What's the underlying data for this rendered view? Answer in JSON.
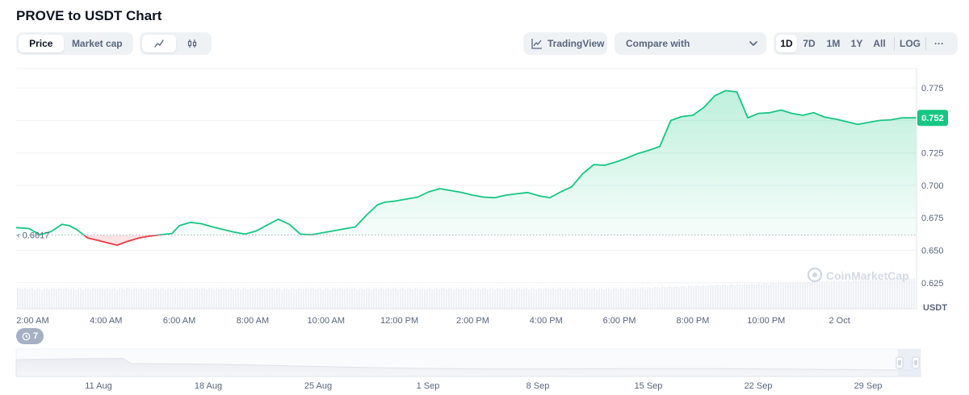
{
  "header": {
    "title": "PROVE to USDT Chart"
  },
  "toolbar": {
    "metric_tabs": [
      {
        "label": "Price",
        "active": true
      },
      {
        "label": "Market cap",
        "active": false
      }
    ],
    "chart_type_icons": [
      "line-chart-icon",
      "candlestick-icon"
    ],
    "tradingview_label": "TradingView",
    "compare_label": "Compare with",
    "ranges": [
      {
        "label": "1D",
        "active": true
      },
      {
        "label": "7D",
        "active": false
      },
      {
        "label": "1M",
        "active": false
      },
      {
        "label": "1Y",
        "active": false
      },
      {
        "label": "All",
        "active": false
      }
    ],
    "log_label": "LOG",
    "more_label": "···"
  },
  "watermark": "CoinMarketCap",
  "history_count": "7",
  "colors": {
    "up": "#16c784",
    "down": "#ea3943",
    "up_fill": "#16c784",
    "down_fill": "#ea3943"
  },
  "chart_data": {
    "type": "line",
    "currency_label": "USDT",
    "baseline": 0.6617,
    "baseline_label": "0.6617",
    "current_label": "0.752",
    "ylim": [
      0.605,
      0.79
    ],
    "yticks": [
      0.625,
      0.65,
      0.675,
      0.7,
      0.725,
      0.75,
      0.775
    ],
    "ytick_labels": [
      "0.625",
      "0.650",
      "0.675",
      "0.700",
      "0.725",
      "0.750",
      "0.775"
    ],
    "xlim": [
      1.55,
      26.1
    ],
    "xticks": [
      2,
      4,
      6,
      8,
      10,
      12,
      14,
      16,
      18,
      20,
      22,
      24
    ],
    "xtick_labels": [
      "2:00 AM",
      "4:00 AM",
      "6:00 AM",
      "8:00 AM",
      "10:00 AM",
      "12:00 PM",
      "2:00 PM",
      "4:00 PM",
      "6:00 PM",
      "8:00 PM",
      "10:00 PM",
      "2 Oct"
    ],
    "x": [
      1.55,
      1.9,
      2.2,
      2.5,
      2.8,
      3.0,
      3.2,
      3.5,
      3.8,
      4.0,
      4.3,
      4.6,
      4.9,
      5.2,
      5.5,
      5.8,
      6.0,
      6.3,
      6.6,
      6.9,
      7.2,
      7.5,
      7.8,
      8.1,
      8.4,
      8.7,
      9.0,
      9.3,
      9.6,
      9.9,
      10.2,
      10.5,
      10.8,
      11.1,
      11.4,
      11.6,
      11.9,
      12.2,
      12.5,
      12.8,
      13.1,
      13.4,
      13.7,
      14.0,
      14.3,
      14.6,
      14.9,
      15.2,
      15.5,
      15.8,
      16.1,
      16.4,
      16.7,
      17.0,
      17.3,
      17.6,
      17.9,
      18.2,
      18.5,
      18.8,
      19.1,
      19.4,
      19.7,
      20.0,
      20.3,
      20.6,
      20.9,
      21.2,
      21.5,
      21.8,
      22.1,
      22.4,
      22.7,
      23.0,
      23.3,
      23.6,
      23.9,
      24.2,
      24.5,
      24.8,
      25.1,
      25.4,
      25.7,
      26.1
    ],
    "y": [
      0.6675,
      0.6668,
      0.662,
      0.6645,
      0.67,
      0.669,
      0.666,
      0.6595,
      0.6575,
      0.656,
      0.654,
      0.657,
      0.6595,
      0.661,
      0.662,
      0.663,
      0.669,
      0.6715,
      0.6705,
      0.668,
      0.666,
      0.664,
      0.6625,
      0.665,
      0.6695,
      0.674,
      0.67,
      0.6625,
      0.662,
      0.6635,
      0.665,
      0.6665,
      0.668,
      0.677,
      0.685,
      0.687,
      0.688,
      0.6895,
      0.691,
      0.695,
      0.6975,
      0.696,
      0.6945,
      0.6925,
      0.691,
      0.6905,
      0.6925,
      0.6935,
      0.6945,
      0.692,
      0.6905,
      0.695,
      0.699,
      0.709,
      0.716,
      0.7155,
      0.718,
      0.721,
      0.7245,
      0.727,
      0.73,
      0.75,
      0.753,
      0.754,
      0.76,
      0.769,
      0.773,
      0.772,
      0.752,
      0.7555,
      0.756,
      0.758,
      0.7555,
      0.754,
      0.756,
      0.7525,
      0.751,
      0.749,
      0.747,
      0.7485,
      0.75,
      0.7505,
      0.752,
      0.752
    ],
    "navigator": {
      "xtick_labels": [
        "11 Aug",
        "18 Aug",
        "25 Aug",
        "1 Sep",
        "8 Sep",
        "15 Sep",
        "22 Sep",
        "29 Sep"
      ]
    }
  }
}
